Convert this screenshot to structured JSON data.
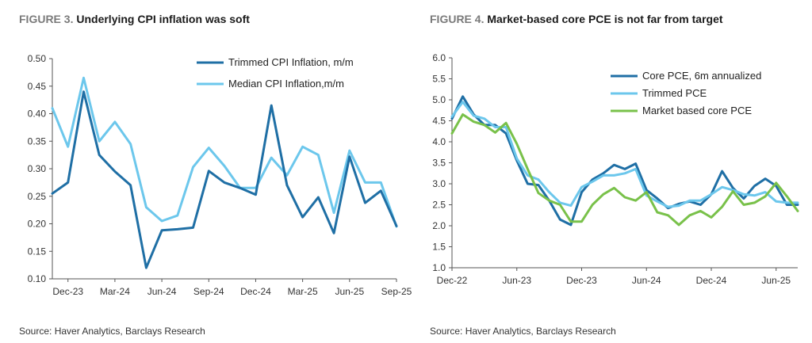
{
  "figures": [
    {
      "label": "FIGURE 3.",
      "title": "Underlying CPI inflation was soft",
      "source": "Source: Haver Analytics, Barclays Research"
    },
    {
      "label": "FIGURE 4.",
      "title": "Market-based core PCE is not far from target",
      "source": "Source: Haver Analytics, Barclays Research"
    }
  ],
  "chart_data": [
    {
      "type": "line",
      "title": "Underlying CPI inflation was soft",
      "xlabel": "",
      "ylabel": "",
      "ylim": [
        0.1,
        0.5
      ],
      "yticks": [
        "0.10",
        "0.15",
        "0.20",
        "0.25",
        "0.30",
        "0.35",
        "0.40",
        "0.45",
        "0.50"
      ],
      "x": [
        "Nov-23",
        "Dec-23",
        "Jan-24",
        "Feb-24",
        "Mar-24",
        "Apr-24",
        "May-24",
        "Jun-24",
        "Jul-24",
        "Aug-24",
        "Sep-24",
        "Oct-24",
        "Nov-24",
        "Dec-24",
        "Jan-25",
        "Feb-25",
        "Mar-25",
        "Apr-25",
        "May-25",
        "Jun-25",
        "Jul-25",
        "Aug-25",
        "Sep-25"
      ],
      "xticks": [
        "Dec-23",
        "Mar-24",
        "Jun-24",
        "Sep-24",
        "Dec-24",
        "Mar-25",
        "Jun-25",
        "Sep-25"
      ],
      "grid": false,
      "legend": "top-right",
      "series": [
        {
          "name": "Trimmed CPI Inflation, m/m",
          "color": "#1f6fa5",
          "values": [
            0.255,
            0.275,
            0.44,
            0.325,
            0.295,
            0.27,
            0.12,
            0.188,
            0.19,
            0.193,
            0.296,
            0.275,
            0.265,
            0.253,
            0.415,
            0.27,
            0.212,
            0.248,
            0.183,
            0.322,
            0.238,
            0.26,
            0.196
          ]
        },
        {
          "name": "Median CPI Inflation,m/m",
          "color": "#6cc7ec",
          "values": [
            0.41,
            0.34,
            0.465,
            0.35,
            0.385,
            0.345,
            0.23,
            0.205,
            0.215,
            0.303,
            0.338,
            0.305,
            0.265,
            0.265,
            0.32,
            0.288,
            0.34,
            0.325,
            0.22,
            0.333,
            0.275,
            0.275,
            0.195
          ]
        }
      ]
    },
    {
      "type": "line",
      "title": "Market-based core PCE is not far from target",
      "xlabel": "",
      "ylabel": "",
      "ylim": [
        1.0,
        6.0
      ],
      "yticks": [
        "1.0",
        "1.5",
        "2.0",
        "2.5",
        "3.0",
        "3.5",
        "4.0",
        "4.5",
        "5.0",
        "5.5",
        "6.0"
      ],
      "x": [
        "Dec-22",
        "Jan-23",
        "Feb-23",
        "Mar-23",
        "Apr-23",
        "May-23",
        "Jun-23",
        "Jul-23",
        "Aug-23",
        "Sep-23",
        "Oct-23",
        "Nov-23",
        "Dec-23",
        "Jan-24",
        "Feb-24",
        "Mar-24",
        "Apr-24",
        "May-24",
        "Jun-24",
        "Jul-24",
        "Aug-24",
        "Sep-24",
        "Oct-24",
        "Nov-24",
        "Dec-24",
        "Jan-25",
        "Feb-25",
        "Mar-25",
        "Apr-25",
        "May-25",
        "Jun-25",
        "Jul-25",
        "Aug-25"
      ],
      "xticks": [
        "Dec-22",
        "Jun-23",
        "Dec-23",
        "Jun-24",
        "Dec-24",
        "Jun-25"
      ],
      "grid": false,
      "legend": "top-right",
      "series": [
        {
          "name": "Core PCE, 6m annualized",
          "color": "#1f6fa5",
          "values": [
            4.55,
            5.08,
            4.65,
            4.4,
            4.4,
            4.2,
            3.55,
            3.0,
            2.97,
            2.6,
            2.15,
            2.02,
            2.8,
            3.1,
            3.25,
            3.45,
            3.35,
            3.48,
            2.85,
            2.65,
            2.42,
            2.52,
            2.58,
            2.5,
            2.75,
            3.3,
            2.9,
            2.65,
            2.95,
            3.12,
            2.95,
            2.5,
            2.5
          ]
        },
        {
          "name": "Trimmed PCE",
          "color": "#6cc7ec",
          "values": [
            4.6,
            4.95,
            4.62,
            4.55,
            4.35,
            4.35,
            3.6,
            3.2,
            3.1,
            2.8,
            2.55,
            2.48,
            2.92,
            3.05,
            3.2,
            3.2,
            3.25,
            3.35,
            2.72,
            2.58,
            2.45,
            2.48,
            2.6,
            2.6,
            2.75,
            2.92,
            2.85,
            2.75,
            2.72,
            2.8,
            2.58,
            2.55,
            2.55
          ]
        },
        {
          "name": "Market based core PCE",
          "color": "#79c14a",
          "values": [
            4.2,
            4.65,
            4.48,
            4.4,
            4.22,
            4.45,
            3.95,
            3.35,
            2.78,
            2.6,
            2.5,
            2.1,
            2.1,
            2.5,
            2.75,
            2.9,
            2.68,
            2.6,
            2.8,
            2.32,
            2.25,
            2.02,
            2.25,
            2.35,
            2.2,
            2.45,
            2.82,
            2.5,
            2.55,
            2.7,
            3.02,
            2.7,
            2.35
          ]
        }
      ]
    }
  ]
}
